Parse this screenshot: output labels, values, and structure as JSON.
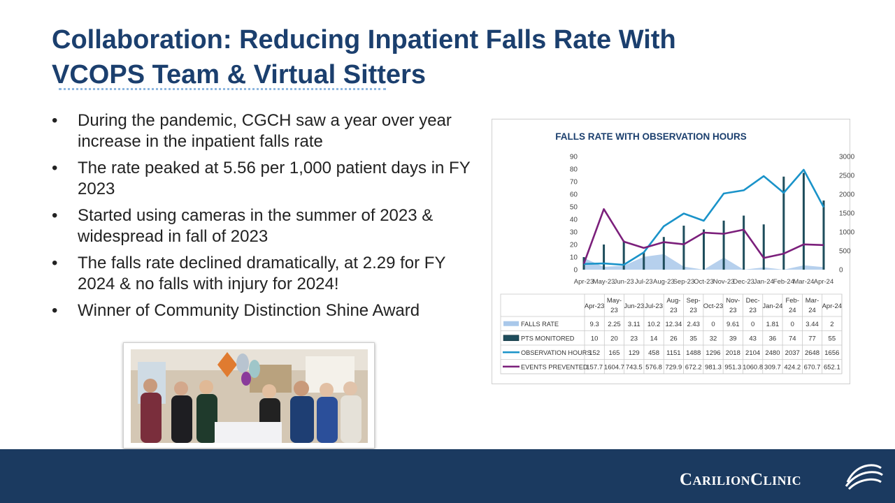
{
  "slide": {
    "title_line1": "Collaboration:  Reducing Inpatient Falls Rate With",
    "title_line2": "VCOPS Team & Virtual Sitters",
    "bullets": [
      "During the pandemic, CGCH saw a year over year increase in the inpatient falls rate",
      "The rate peaked at 5.56 per 1,000 patient days in FY 2023",
      "Started using cameras in the summer of 2023 & widespread in fall of 2023",
      "The falls rate declined dramatically, at 2.29 for FY 2024 & no falls with injury for 2024!",
      "Winner of Community Distinction Shine Award"
    ],
    "bullet_glyph": "•"
  },
  "brand": {
    "name": "CarilionClinic",
    "logo_icon": "swoosh-icon"
  },
  "colors": {
    "title": "#1b3f6e",
    "footer": "#1b3a60",
    "falls_rate": "#a9c8ea",
    "pts_monitored": "#1e4d5c",
    "observation_hours": "#1a93c9",
    "events_prevented": "#7b1f7b"
  },
  "chart_data": {
    "type": "line",
    "title": "FALLS RATE WITH OBSERVATION HOURS",
    "categories": [
      "Apr-23",
      "May-23",
      "Jun-23",
      "Jul-23",
      "Aug-23",
      "Sep-23",
      "Oct-23",
      "Nov-23",
      "Dec-23",
      "Jan-24",
      "Feb-24",
      "Mar-24",
      "Apr-24"
    ],
    "y_left": {
      "min": 0,
      "max": 90,
      "ticks": [
        0,
        10,
        20,
        30,
        40,
        50,
        60,
        70,
        80,
        90
      ]
    },
    "y_right": {
      "min": 0,
      "max": 3000,
      "ticks": [
        0,
        500,
        1000,
        1500,
        2000,
        2500,
        3000
      ]
    },
    "grid": false,
    "legend": "table-below",
    "series": [
      {
        "name": "FALLS RATE",
        "render": "area",
        "axis": "left",
        "values": [
          9.3,
          2.25,
          3.11,
          10.2,
          12.34,
          2.43,
          0,
          9.61,
          0,
          1.81,
          0,
          3.44,
          2
        ],
        "labels": [
          "9.3",
          "2.25",
          "3.11",
          "10.2",
          "12.34",
          "2.43",
          "0",
          "9.61",
          "0",
          "1.81",
          "0",
          "3.44",
          "2"
        ]
      },
      {
        "name": "PTS MONITORED",
        "render": "bar",
        "axis": "left",
        "values": [
          10,
          20,
          23,
          14,
          26,
          35,
          32,
          39,
          43,
          36,
          74,
          77,
          55
        ],
        "labels": [
          "10",
          "20",
          "23",
          "14",
          "26",
          "35",
          "32",
          "39",
          "43",
          "36",
          "74",
          "77",
          "55"
        ]
      },
      {
        "name": "OBSERVATION HOURS",
        "render": "line",
        "axis": "right",
        "values": [
          152,
          165,
          129,
          458,
          1151,
          1488,
          1296,
          2018,
          2104,
          2480,
          2037,
          2648,
          1656
        ],
        "labels": [
          "152",
          "165",
          "129",
          "458",
          "1151",
          "1488",
          "1296",
          "2018",
          "2104",
          "2480",
          "2037",
          "2648",
          "1656"
        ]
      },
      {
        "name": "EVENTS PREVENTED",
        "render": "line",
        "axis": "right",
        "values": [
          157.7,
          1604.7,
          743.5,
          576.8,
          729.9,
          672.2,
          981.3,
          951.3,
          1060.8,
          309.7,
          424.2,
          670.7,
          652.1
        ],
        "labels": [
          "157.7",
          "1604.7",
          "743.5",
          "576.8",
          "729.9",
          "672.2",
          "981.3",
          "951.3",
          "1060.8",
          "309.7",
          "424.2",
          "670.7",
          "652.1"
        ]
      }
    ],
    "table_headers": [
      [
        "Apr-23"
      ],
      [
        "May-",
        "23"
      ],
      [
        "Jun-23"
      ],
      [
        "Jul-23"
      ],
      [
        "Aug-",
        "23"
      ],
      [
        "Sep-",
        "23"
      ],
      [
        "Oct-23"
      ],
      [
        "Nov-",
        "23"
      ],
      [
        "Dec-",
        "23"
      ],
      [
        "Jan-24"
      ],
      [
        "Feb-",
        "24"
      ],
      [
        "Mar-",
        "24"
      ],
      [
        "Apr-24"
      ]
    ]
  }
}
